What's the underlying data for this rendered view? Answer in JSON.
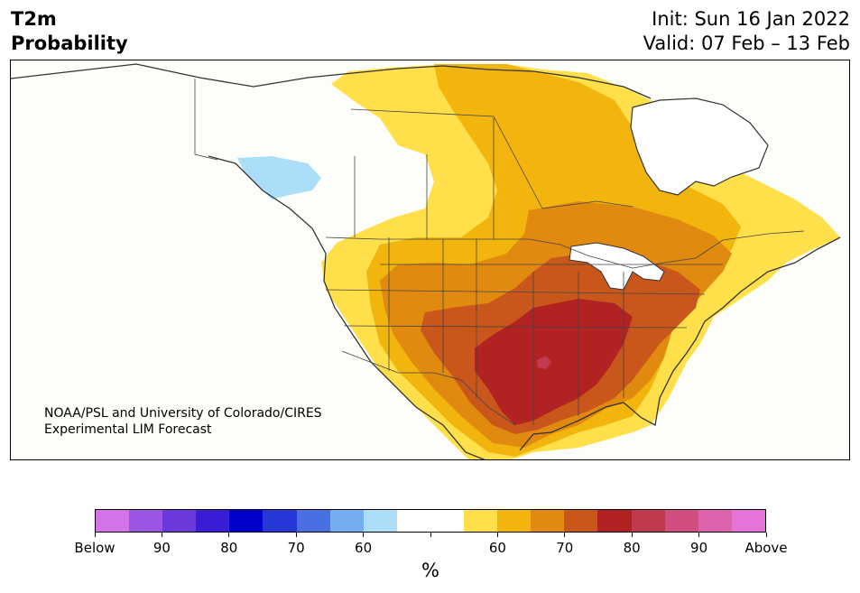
{
  "title": {
    "line1": "T2m",
    "line2": "Probability"
  },
  "dates": {
    "init": "Init: Sun 16 Jan 2022",
    "valid": "Valid: 07 Feb – 13 Feb"
  },
  "credit": {
    "line1": "NOAA/PSL and University of Colorado/CIRES",
    "line2": "Experimental LIM Forecast"
  },
  "colorbar": {
    "colors": [
      "#d473e8",
      "#9c55e3",
      "#6b38dc",
      "#3a1ed6",
      "#0000cc",
      "#2637d8",
      "#4a6fe3",
      "#74aef0",
      "#addef9",
      "#ffffff",
      "#ffffff",
      "#ffe04a",
      "#f2b50d",
      "#e08a10",
      "#c9561a",
      "#b22222",
      "#c23a4f",
      "#d04f80",
      "#dc62ac",
      "#e673da"
    ],
    "labels": [
      "Below",
      "90",
      "80",
      "70",
      "60",
      "",
      "60",
      "70",
      "80",
      "90",
      "Above"
    ],
    "unit": "%"
  },
  "legend_meaning": {
    "left": "Below",
    "right": "Above"
  }
}
